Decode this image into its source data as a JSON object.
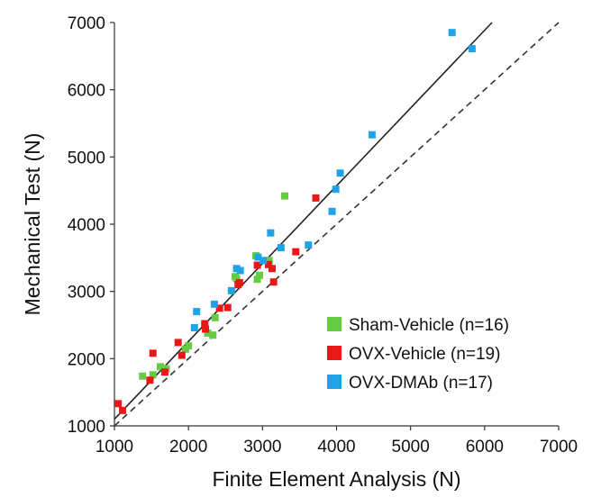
{
  "chart_data": {
    "type": "scatter",
    "xlabel": "Finite Element Analysis (N)",
    "ylabel": "Mechanical Test (N)",
    "xlim": [
      1000,
      7000
    ],
    "ylim": [
      1000,
      7000
    ],
    "xticks": [
      1000,
      2000,
      3000,
      4000,
      5000,
      6000,
      7000
    ],
    "yticks": [
      1000,
      2000,
      3000,
      4000,
      5000,
      6000,
      7000
    ],
    "grid": false,
    "legend_position": "bottom-right",
    "reference_lines": [
      {
        "name": "regression",
        "style": "solid",
        "color": "#222222",
        "points": [
          [
            1000,
            1100
          ],
          [
            6100,
            7000
          ]
        ]
      },
      {
        "name": "identity",
        "style": "dashed",
        "color": "#333333",
        "points": [
          [
            1000,
            1000
          ],
          [
            7000,
            7000
          ]
        ]
      }
    ],
    "series": [
      {
        "name": "Sham-Vehicle (n=16)",
        "color": "#66cc44",
        "points": [
          [
            1380,
            1740
          ],
          [
            1520,
            1760
          ],
          [
            1620,
            1880
          ],
          [
            1700,
            1850
          ],
          [
            1960,
            2140
          ],
          [
            2000,
            2190
          ],
          [
            2260,
            2380
          ],
          [
            2330,
            2350
          ],
          [
            2360,
            2610
          ],
          [
            2630,
            3220
          ],
          [
            2650,
            3190
          ],
          [
            2910,
            3530
          ],
          [
            2930,
            3180
          ],
          [
            2960,
            3240
          ],
          [
            3090,
            3460
          ],
          [
            3300,
            4420
          ]
        ]
      },
      {
        "name": "OVX-Vehicle (n=19)",
        "color": "#e81818",
        "points": [
          [
            1050,
            1330
          ],
          [
            1110,
            1230
          ],
          [
            1480,
            1680
          ],
          [
            1520,
            2080
          ],
          [
            1680,
            1800
          ],
          [
            1860,
            2240
          ],
          [
            1910,
            2050
          ],
          [
            2220,
            2520
          ],
          [
            2230,
            2440
          ],
          [
            2420,
            2750
          ],
          [
            2530,
            2760
          ],
          [
            2670,
            3100
          ],
          [
            2690,
            3130
          ],
          [
            2930,
            3390
          ],
          [
            3080,
            3400
          ],
          [
            3130,
            3340
          ],
          [
            3150,
            3140
          ],
          [
            3450,
            3590
          ],
          [
            3720,
            4390
          ]
        ]
      },
      {
        "name": "OVX-DMAb (n=17)",
        "color": "#1ea4e6",
        "points": [
          [
            2080,
            2460
          ],
          [
            2110,
            2700
          ],
          [
            2350,
            2810
          ],
          [
            2580,
            3010
          ],
          [
            2650,
            3340
          ],
          [
            2700,
            3310
          ],
          [
            3010,
            3460
          ],
          [
            3110,
            3870
          ],
          [
            3250,
            3650
          ],
          [
            3620,
            3690
          ],
          [
            3940,
            4190
          ],
          [
            3990,
            4520
          ],
          [
            4050,
            4760
          ],
          [
            4480,
            5330
          ],
          [
            5560,
            6850
          ],
          [
            5830,
            6610
          ],
          [
            2940,
            3510
          ]
        ]
      }
    ]
  }
}
